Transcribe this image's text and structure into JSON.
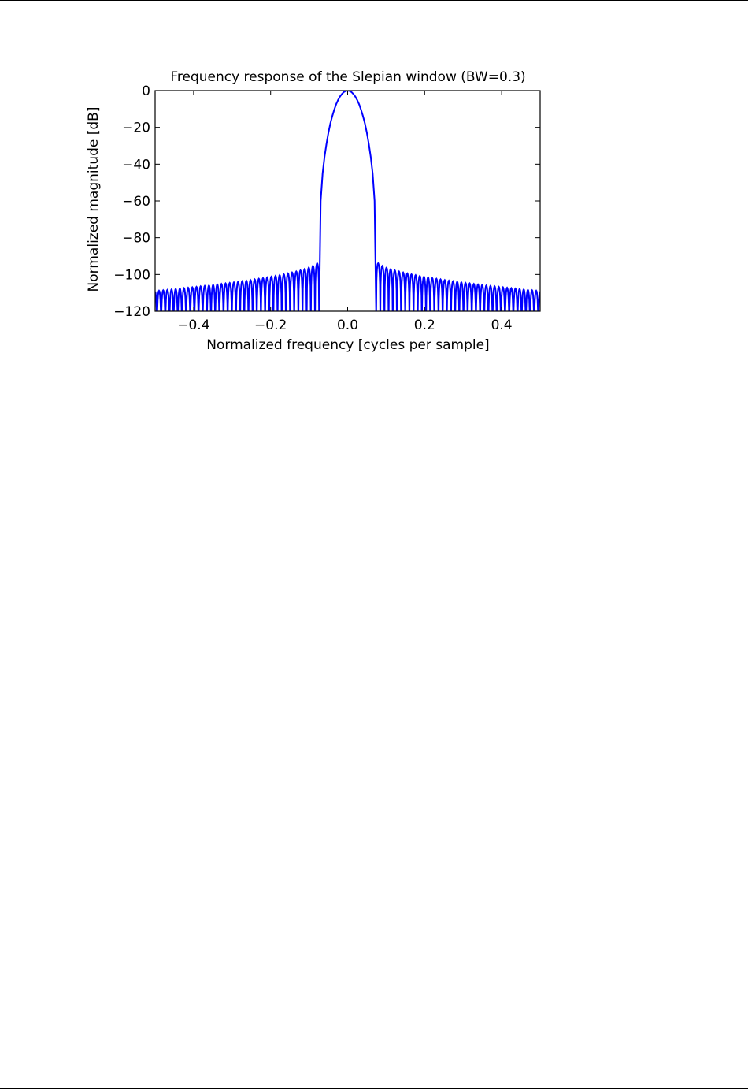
{
  "chart_data": {
    "type": "line",
    "title": "Frequency response of the Slepian window (BW=0.3)",
    "xlabel": "Normalized frequency [cycles per sample]",
    "ylabel": "Normalized magnitude [dB]",
    "xlim": [
      -0.5,
      0.5
    ],
    "ylim": [
      -120,
      0
    ],
    "xticks": [
      -0.4,
      -0.2,
      0.0,
      0.2,
      0.4
    ],
    "xtick_labels": [
      "−0.4",
      "−0.2",
      "0.0",
      "0.2",
      "0.4"
    ],
    "yticks": [
      0,
      -20,
      -40,
      -60,
      -80,
      -100,
      -120
    ],
    "ytick_labels": [
      "0",
      "−20",
      "−40",
      "−60",
      "−80",
      "−100",
      "−120"
    ],
    "grid": false,
    "line_color": "#0000ff",
    "series": [
      {
        "main_lobe": {
          "x": [
            -0.074,
            -0.07,
            -0.065,
            -0.06,
            -0.055,
            -0.05,
            -0.045,
            -0.04,
            -0.035,
            -0.03,
            -0.025,
            -0.02,
            -0.015,
            -0.01,
            -0.005,
            0.0,
            0.005,
            0.01,
            0.015,
            0.02,
            0.025,
            0.03,
            0.035,
            0.04,
            0.045,
            0.05,
            0.055,
            0.06,
            0.065,
            0.07,
            0.074
          ],
          "y": [
            -120,
            -60,
            -45,
            -36,
            -29,
            -23,
            -18,
            -14,
            -10.5,
            -7.5,
            -5.2,
            -3.3,
            -1.9,
            -0.8,
            -0.2,
            0,
            -0.2,
            -0.8,
            -1.9,
            -3.3,
            -5.2,
            -7.5,
            -10.5,
            -14,
            -18,
            -23,
            -29,
            -36,
            -45,
            -60,
            -120
          ]
        },
        "sidelobes": {
          "first_null": 0.074,
          "spacing": 0.0108,
          "peak_near_mainlobe": -92,
          "peak_at_edge": -109
        }
      }
    ]
  }
}
